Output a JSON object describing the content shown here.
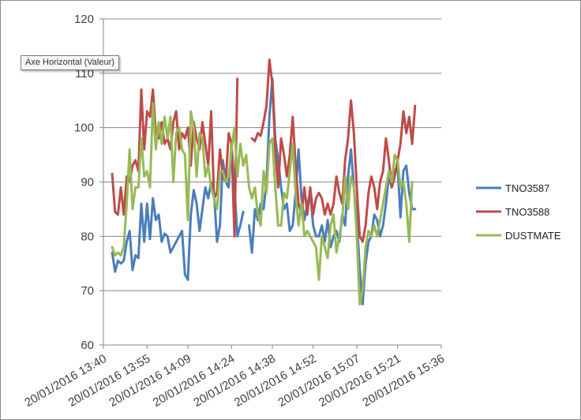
{
  "tooltip": "Axe Horizontal (Valeur)",
  "chart_data": {
    "type": "line",
    "ylim": [
      60,
      120
    ],
    "y_ticks": [
      60,
      70,
      80,
      90,
      100,
      110,
      120
    ],
    "x_range": [
      "20/01/2016 13:40",
      "20/01/2016 15:36"
    ],
    "x_tick_labels": [
      "20/01/2016 13:40",
      "20/01/2016 13:55",
      "20/01/2016 14:09",
      "20/01/2016 14:24",
      "20/01/2016 14:38",
      "20/01/2016 14:52",
      "20/01/2016 15:07",
      "20/01/2016 15:21",
      "20/01/2016 15:36"
    ],
    "grid": true,
    "legend": "right",
    "series": [
      {
        "name": "TNO3587",
        "color": "#4a7ebb",
        "points": [
          [
            "13:43",
            77
          ],
          [
            "13:44",
            73.5
          ],
          [
            "13:45",
            75.5
          ],
          [
            "13:46",
            75
          ],
          [
            "13:47",
            75.5
          ],
          [
            "13:48",
            79
          ],
          [
            "13:49",
            81
          ],
          [
            "13:50",
            73.8
          ],
          [
            "13:51",
            76.5
          ],
          [
            "13:52",
            76
          ],
          [
            "13:53",
            86
          ],
          [
            "13:54",
            79
          ],
          [
            "13:55",
            86
          ],
          [
            "13:56",
            79.5
          ],
          [
            "13:57",
            87
          ],
          [
            "13:58",
            83
          ],
          [
            "13:59",
            84
          ],
          [
            "14:00",
            79
          ],
          [
            "14:01",
            80.5
          ],
          [
            "14:02",
            80
          ],
          [
            "14:03",
            77
          ],
          [
            "14:04",
            78
          ],
          [
            "14:05",
            79
          ],
          [
            "14:06",
            80
          ],
          [
            "14:07",
            81
          ],
          [
            "14:08",
            73
          ],
          [
            "14:09",
            72
          ],
          [
            "14:10",
            84
          ],
          [
            "14:11",
            88.5
          ],
          [
            "14:12",
            86
          ],
          [
            "14:13",
            81
          ],
          [
            "14:14",
            85
          ],
          [
            "14:15",
            89
          ],
          [
            "14:16",
            87
          ],
          [
            "14:17",
            90
          ],
          [
            "14:18",
            88
          ],
          [
            "14:19",
            79
          ],
          [
            "14:20",
            82
          ],
          [
            "14:21",
            94
          ],
          [
            "14:22",
            90
          ],
          [
            "14:23",
            89
          ],
          [
            "14:24",
            97
          ],
          [
            "14:25",
            89
          ],
          [
            "14:26",
            80
          ],
          [
            "14:27",
            82
          ],
          [
            "14:28",
            84.5
          ],
          null,
          [
            "14:30",
            82
          ],
          [
            "14:31",
            77
          ],
          [
            "14:32",
            85
          ],
          [
            "14:33",
            83
          ],
          [
            "14:34",
            86
          ],
          [
            "14:35",
            85
          ],
          [
            "14:36",
            90
          ],
          [
            "14:37",
            102
          ],
          [
            "14:38",
            109
          ],
          [
            "14:39",
            98
          ],
          [
            "14:40",
            94
          ],
          [
            "14:41",
            89
          ],
          [
            "14:42",
            85
          ],
          [
            "14:43",
            86
          ],
          [
            "14:44",
            81
          ],
          [
            "14:45",
            82
          ],
          [
            "14:46",
            88
          ],
          [
            "14:47",
            96
          ],
          [
            "14:48",
            87
          ],
          [
            "14:49",
            83
          ],
          [
            "14:50",
            86
          ],
          [
            "14:51",
            88
          ],
          [
            "14:52",
            82
          ],
          [
            "14:53",
            80
          ],
          [
            "14:54",
            80
          ],
          [
            "14:55",
            82
          ],
          [
            "14:56",
            79
          ],
          [
            "14:57",
            83
          ],
          [
            "14:58",
            78
          ],
          [
            "14:59",
            80
          ],
          [
            "15:00",
            81
          ],
          [
            "15:01",
            79
          ],
          [
            "15:02",
            84
          ],
          [
            "15:03",
            82
          ],
          [
            "15:04",
            91
          ],
          [
            "15:05",
            96
          ],
          [
            "15:06",
            89
          ],
          [
            "15:07",
            83
          ],
          [
            "15:08",
            74
          ],
          [
            "15:09",
            67.5
          ],
          [
            "15:10",
            75
          ],
          [
            "15:11",
            79
          ],
          [
            "15:12",
            80
          ],
          [
            "15:13",
            84
          ],
          [
            "15:14",
            83
          ],
          [
            "15:15",
            80
          ],
          [
            "15:16",
            82
          ],
          [
            "15:17",
            86
          ],
          [
            "15:18",
            91
          ],
          [
            "15:19",
            89
          ],
          [
            "15:20",
            92
          ],
          [
            "15:21",
            93
          ],
          [
            "15:22",
            83.5
          ],
          [
            "15:23",
            92
          ],
          [
            "15:24",
            93
          ],
          [
            "15:25",
            88
          ],
          [
            "15:26",
            85
          ],
          [
            "15:27",
            85
          ]
        ]
      },
      {
        "name": "TNO3588",
        "color": "#be4b48",
        "points": [
          [
            "13:43",
            91.5
          ],
          [
            "13:44",
            84.5
          ],
          [
            "13:45",
            84
          ],
          [
            "13:46",
            89
          ],
          [
            "13:47",
            84
          ],
          [
            "13:48",
            91
          ],
          [
            "13:49",
            90
          ],
          [
            "13:50",
            93
          ],
          [
            "13:51",
            94
          ],
          [
            "13:52",
            92
          ],
          [
            "13:53",
            107
          ],
          [
            "13:54",
            96
          ],
          [
            "13:55",
            103
          ],
          [
            "13:56",
            102
          ],
          [
            "13:57",
            107
          ],
          [
            "13:58",
            99
          ],
          [
            "13:59",
            98
          ],
          [
            "14:00",
            101
          ],
          [
            "14:01",
            97
          ],
          [
            "14:02",
            98
          ],
          [
            "14:03",
            96
          ],
          [
            "14:04",
            101
          ],
          [
            "14:05",
            103
          ],
          [
            "14:06",
            96
          ],
          [
            "14:07",
            99
          ],
          [
            "14:08",
            98
          ],
          [
            "14:09",
            100
          ],
          [
            "14:10",
            93
          ],
          [
            "14:11",
            101
          ],
          [
            "14:12",
            98
          ],
          [
            "14:13",
            96
          ],
          [
            "14:14",
            101
          ],
          [
            "14:15",
            97
          ],
          [
            "14:16",
            93
          ],
          [
            "14:17",
            103
          ],
          [
            "14:18",
            87
          ],
          [
            "14:19",
            88
          ],
          [
            "14:20",
            96
          ],
          [
            "14:21",
            91
          ],
          [
            "14:22",
            90
          ],
          [
            "14:23",
            99
          ],
          [
            "14:24",
            97
          ],
          [
            "14:25",
            80
          ],
          [
            "14:26",
            109
          ],
          null,
          [
            "14:31",
            98
          ],
          [
            "14:32",
            97.5
          ],
          [
            "14:33",
            99
          ],
          [
            "14:34",
            98.5
          ],
          [
            "14:35",
            101
          ],
          [
            "14:36",
            104
          ],
          [
            "14:37",
            112.5
          ],
          [
            "14:38",
            108
          ],
          [
            "14:39",
            96
          ],
          [
            "14:40",
            89
          ],
          [
            "14:41",
            98
          ],
          [
            "14:42",
            95
          ],
          [
            "14:43",
            91
          ],
          [
            "14:44",
            95
          ],
          [
            "14:45",
            102
          ],
          [
            "14:46",
            93
          ],
          [
            "14:47",
            86
          ],
          [
            "14:48",
            84
          ],
          [
            "14:49",
            89
          ],
          [
            "14:50",
            84
          ],
          [
            "14:51",
            89
          ],
          [
            "14:52",
            84
          ],
          [
            "14:53",
            87
          ],
          [
            "14:54",
            88
          ],
          [
            "14:55",
            87
          ],
          [
            "14:56",
            84
          ],
          [
            "14:57",
            86
          ],
          [
            "14:58",
            84
          ],
          [
            "14:59",
            86
          ],
          [
            "15:00",
            91
          ],
          [
            "15:01",
            88
          ],
          [
            "15:02",
            86
          ],
          [
            "15:03",
            94
          ],
          [
            "15:04",
            98
          ],
          [
            "15:05",
            105
          ],
          [
            "15:06",
            99
          ],
          [
            "15:07",
            89
          ],
          [
            "15:08",
            80
          ],
          [
            "15:09",
            79
          ],
          [
            "15:10",
            82
          ],
          [
            "15:11",
            88
          ],
          [
            "15:12",
            91
          ],
          [
            "15:13",
            89
          ],
          [
            "15:14",
            85
          ],
          [
            "15:15",
            90
          ],
          [
            "15:16",
            92
          ],
          [
            "15:17",
            98
          ],
          [
            "15:18",
            94
          ],
          [
            "15:19",
            89
          ],
          [
            "15:20",
            91
          ],
          [
            "15:21",
            94
          ],
          [
            "15:22",
            97
          ],
          [
            "15:23",
            103
          ],
          [
            "15:24",
            99
          ],
          [
            "15:25",
            102
          ],
          [
            "15:26",
            97
          ],
          [
            "15:27",
            104
          ]
        ]
      },
      {
        "name": "DUSTMATE",
        "color": "#98b954",
        "points": [
          [
            "13:43",
            78
          ],
          [
            "13:44",
            76.5
          ],
          [
            "13:45",
            77
          ],
          [
            "13:46",
            76.5
          ],
          [
            "13:47",
            78
          ],
          [
            "13:48",
            86
          ],
          [
            "13:49",
            96
          ],
          [
            "13:50",
            85
          ],
          [
            "13:51",
            89
          ],
          [
            "13:52",
            89
          ],
          [
            "13:53",
            98
          ],
          [
            "13:54",
            91
          ],
          [
            "13:55",
            92
          ],
          [
            "13:56",
            89
          ],
          [
            "13:57",
            104.5
          ],
          [
            "13:58",
            96
          ],
          [
            "13:59",
            101
          ],
          [
            "14:00",
            97
          ],
          [
            "14:01",
            102
          ],
          [
            "14:02",
            98
          ],
          [
            "14:03",
            102
          ],
          [
            "14:04",
            90
          ],
          [
            "14:05",
            99
          ],
          [
            "14:06",
            100
          ],
          [
            "14:07",
            96
          ],
          [
            "14:08",
            95
          ],
          [
            "14:09",
            83
          ],
          [
            "14:10",
            103
          ],
          [
            "14:11",
            100
          ],
          [
            "14:12",
            91
          ],
          [
            "14:13",
            99
          ],
          [
            "14:14",
            98
          ],
          [
            "14:15",
            91
          ],
          [
            "14:16",
            93
          ],
          [
            "14:17",
            89
          ],
          [
            "14:18",
            87
          ],
          [
            "14:19",
            85
          ],
          [
            "14:20",
            92
          ],
          [
            "14:21",
            92
          ],
          [
            "14:22",
            90
          ],
          [
            "14:23",
            91
          ],
          [
            "14:24",
            96
          ],
          [
            "14:25",
            100
          ],
          [
            "14:26",
            91
          ],
          [
            "14:27",
            97
          ],
          [
            "14:28",
            93
          ],
          [
            "14:29",
            95
          ],
          [
            "14:30",
            89
          ],
          [
            "14:31",
            87
          ],
          [
            "14:32",
            89
          ],
          [
            "14:33",
            84
          ],
          [
            "14:34",
            82
          ],
          [
            "14:35",
            92
          ],
          [
            "14:36",
            88
          ],
          [
            "14:37",
            97
          ],
          [
            "14:38",
            98
          ],
          [
            "14:39",
            89
          ],
          [
            "14:40",
            82
          ],
          [
            "14:41",
            82
          ],
          [
            "14:42",
            88
          ],
          [
            "14:43",
            87
          ],
          [
            "14:44",
            92
          ],
          [
            "14:45",
            97
          ],
          [
            "14:46",
            88
          ],
          [
            "14:47",
            82
          ],
          [
            "14:48",
            86
          ],
          [
            "14:49",
            80
          ],
          [
            "14:50",
            81
          ],
          [
            "14:51",
            80
          ],
          [
            "14:52",
            79
          ],
          [
            "14:53",
            78
          ],
          [
            "14:54",
            72
          ],
          [
            "14:55",
            80
          ],
          [
            "14:56",
            78
          ],
          [
            "14:57",
            76
          ],
          [
            "14:58",
            82
          ],
          [
            "14:59",
            84
          ],
          [
            "15:00",
            77
          ],
          [
            "15:01",
            80
          ],
          [
            "15:02",
            83
          ],
          [
            "15:03",
            91
          ],
          [
            "15:04",
            85
          ],
          [
            "15:05",
            91
          ],
          [
            "15:06",
            89
          ],
          [
            "15:07",
            80
          ],
          [
            "15:08",
            67.5
          ],
          [
            "15:09",
            70
          ],
          [
            "15:10",
            78
          ],
          [
            "15:11",
            81
          ],
          [
            "15:12",
            80
          ],
          [
            "15:13",
            82
          ],
          [
            "15:14",
            80
          ],
          [
            "15:15",
            83
          ],
          [
            "15:16",
            86
          ],
          [
            "15:17",
            89
          ],
          [
            "15:18",
            92
          ],
          [
            "15:19",
            90
          ],
          [
            "15:20",
            95
          ],
          [
            "15:21",
            94
          ],
          [
            "15:22",
            89
          ],
          [
            "15:23",
            90
          ],
          [
            "15:24",
            86
          ],
          [
            "15:25",
            79
          ],
          [
            "15:26",
            90
          ]
        ]
      }
    ]
  }
}
